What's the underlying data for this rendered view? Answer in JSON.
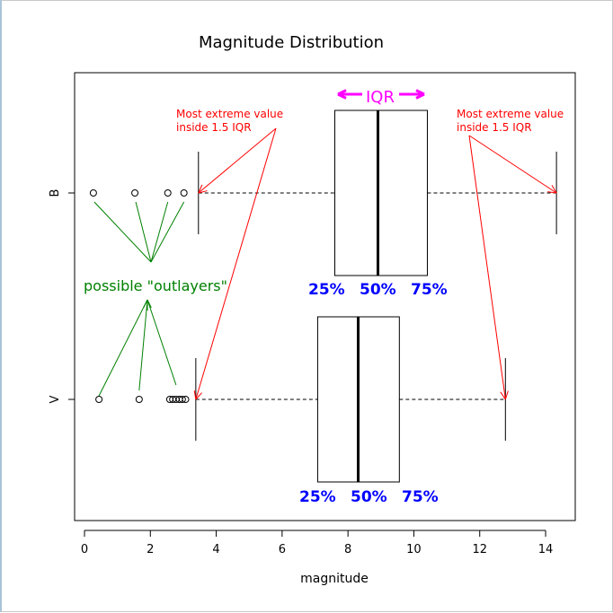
{
  "chart_data": {
    "type": "boxplot",
    "orientation": "horizontal",
    "title": "Magnitude Distribution",
    "xlabel": "magnitude",
    "ylabel": "",
    "xlim": [
      -0.3,
      14.9
    ],
    "xticks": [
      0,
      2,
      4,
      6,
      8,
      10,
      12,
      14
    ],
    "grid": false,
    "categories": [
      "B",
      "V"
    ],
    "series": [
      {
        "category": "B",
        "whisker_low": 3.46,
        "q1": 7.6,
        "median": 8.91,
        "q3": 10.41,
        "whisker_high": 14.33,
        "outliers": [
          0.27,
          1.53,
          2.53,
          3.02
        ]
      },
      {
        "category": "V",
        "whisker_low": 3.38,
        "q1": 7.08,
        "median": 8.31,
        "q3": 9.56,
        "whisker_high": 12.78,
        "outliers": [
          0.44,
          1.66,
          2.59,
          2.68,
          2.78,
          2.88,
          2.97,
          3.07
        ]
      }
    ],
    "annotations": {
      "iqr_label": "IQR",
      "extreme_label_line1": "Most extreme value",
      "extreme_label_line2": "inside 1.5 IQR",
      "outliers_label": "possible \"outlayers\"",
      "quartile_labels": [
        "25%",
        "50%",
        "75%"
      ]
    },
    "colors": {
      "extreme": "#ff0000",
      "outliers": "#008000",
      "iqr": "#ff00ff",
      "quartiles": "#0000ff",
      "box": "#000000"
    }
  }
}
